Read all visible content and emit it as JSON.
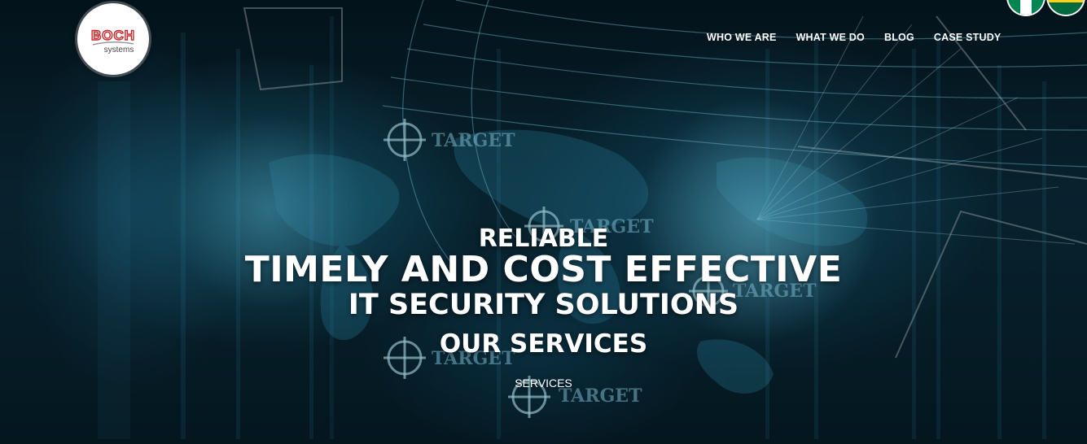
{
  "logo": {
    "wordmark": "BOCH",
    "tagline": "systems",
    "brand_color": "#c8262c"
  },
  "nav": {
    "items": [
      {
        "label": "WHO WE ARE"
      },
      {
        "label": "WHAT WE DO"
      },
      {
        "label": "BLOG"
      },
      {
        "label": "CASE STUDY"
      }
    ]
  },
  "flags": [
    {
      "icon": "nigeria-flag-icon",
      "colors": [
        "#008751",
        "#ffffff",
        "#008751"
      ]
    },
    {
      "icon": "ghana-flag-icon",
      "colors": [
        "#ce1126",
        "#fcd116",
        "#006b3f"
      ]
    }
  ],
  "hero": {
    "line1": "RELIABLE",
    "line2": "TIMELY AND COST EFFECTIVE",
    "line3": "IT SECURITY SOLUTIONS",
    "section_heading": "OUR SERVICES",
    "services_link": "SERVICES",
    "background_words": [
      "TARGET",
      "TARGET",
      "TARGET",
      "TARGET",
      "TARGET"
    ],
    "accent_color": "#5fd6ff"
  }
}
